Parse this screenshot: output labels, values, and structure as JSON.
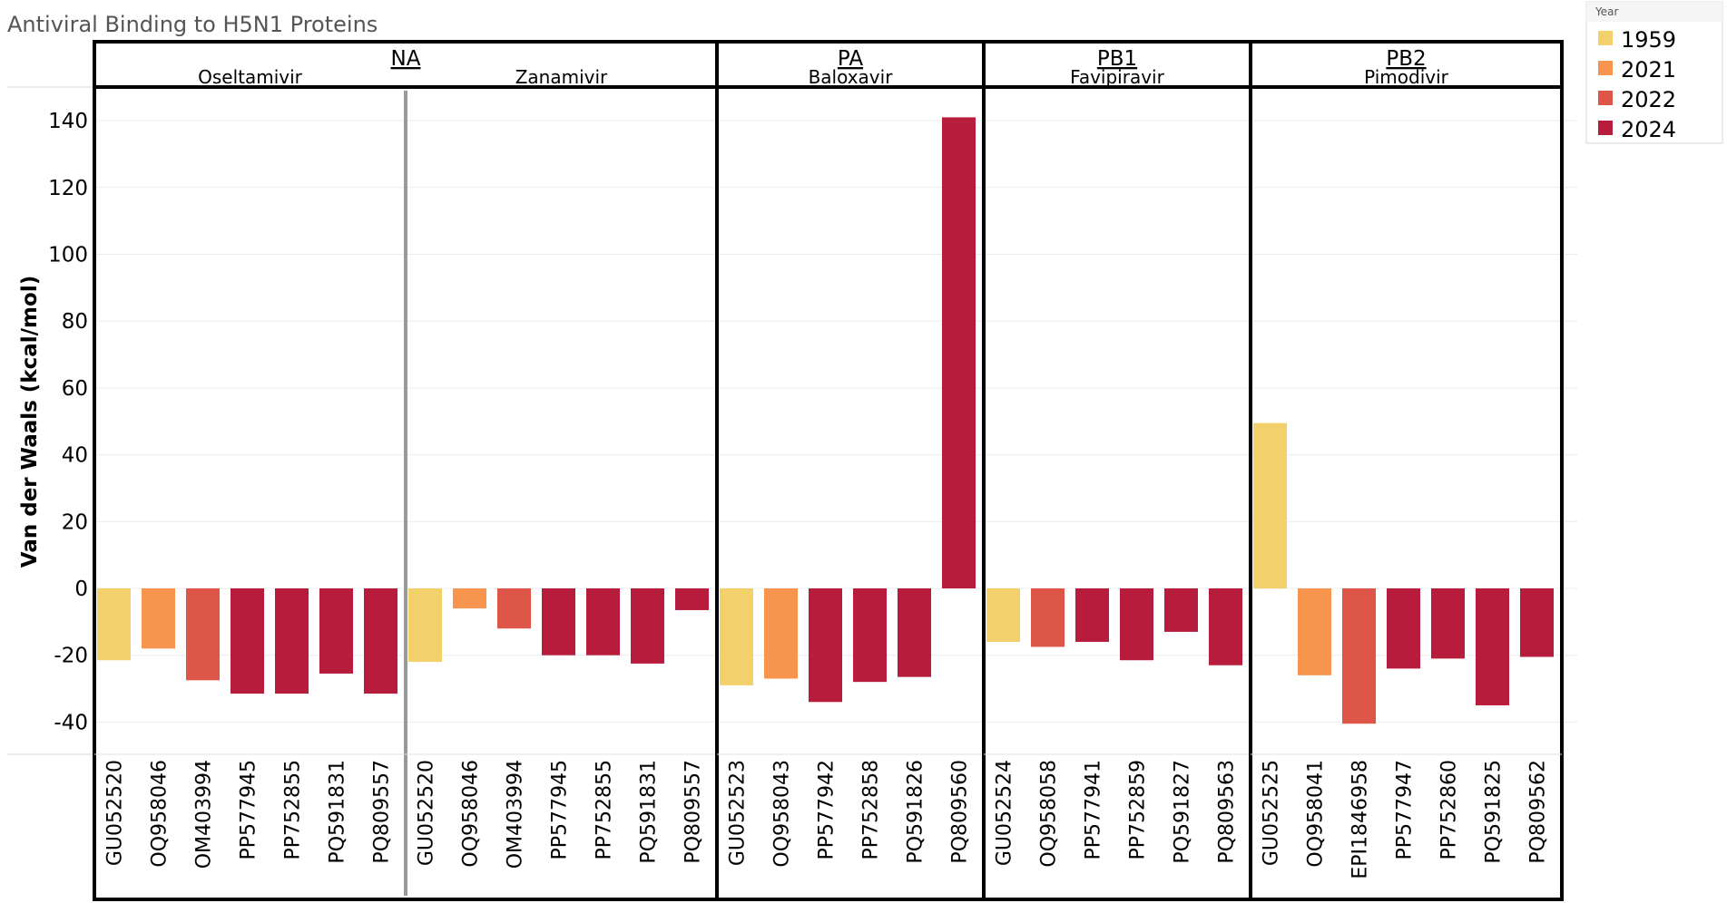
{
  "chart_data": {
    "type": "bar",
    "title": "Antiviral Binding to H5N1 Proteins",
    "ylabel": "Van der Waals (kcal/mol)",
    "ylim": [
      -49,
      150
    ],
    "yticks": [
      140,
      120,
      100,
      80,
      60,
      40,
      20,
      0,
      -20,
      -40
    ],
    "grid": true,
    "legend_placement": "top-right",
    "legend": {
      "title": "Year",
      "items": [
        {
          "label": "1959",
          "color": "#F2D06B"
        },
        {
          "label": "2021",
          "color": "#F7954E"
        },
        {
          "label": "2022",
          "color": "#DE5647"
        },
        {
          "label": "2024",
          "color": "#B81C3C"
        }
      ]
    },
    "panels": [
      {
        "protein": "NA",
        "groups": [
          {
            "drug": "Oseltamivir",
            "bars": [
              {
                "id": "GU052520",
                "year": "1959",
                "value": -21.5
              },
              {
                "id": "OQ958046",
                "year": "2021",
                "value": -18
              },
              {
                "id": "OM403994",
                "year": "2022",
                "value": -27.5
              },
              {
                "id": "PP577945",
                "year": "2024",
                "value": -31.5
              },
              {
                "id": "PP752855",
                "year": "2024",
                "value": -31.5
              },
              {
                "id": "PQ591831",
                "year": "2024",
                "value": -25.5
              },
              {
                "id": "PQ809557",
                "year": "2024",
                "value": -31.5
              }
            ]
          },
          {
            "drug": "Zanamivir",
            "bars": [
              {
                "id": "GU052520",
                "year": "1959",
                "value": -22
              },
              {
                "id": "OQ958046",
                "year": "2021",
                "value": -6
              },
              {
                "id": "OM403994",
                "year": "2022",
                "value": -12
              },
              {
                "id": "PP577945",
                "year": "2024",
                "value": -20
              },
              {
                "id": "PP752855",
                "year": "2024",
                "value": -20
              },
              {
                "id": "PQ591831",
                "year": "2024",
                "value": -22.5
              },
              {
                "id": "PQ809557",
                "year": "2024",
                "value": -6.5
              }
            ]
          }
        ]
      },
      {
        "protein": "PA",
        "groups": [
          {
            "drug": "Baloxavir",
            "bars": [
              {
                "id": "GU052523",
                "year": "1959",
                "value": -29
              },
              {
                "id": "OQ958043",
                "year": "2021",
                "value": -27
              },
              {
                "id": "PP577942",
                "year": "2024",
                "value": -34
              },
              {
                "id": "PP752858",
                "year": "2024",
                "value": -28
              },
              {
                "id": "PQ591826",
                "year": "2024",
                "value": -26.5
              },
              {
                "id": "PQ809560",
                "year": "2024",
                "value": 141
              }
            ]
          }
        ]
      },
      {
        "protein": "PB1",
        "groups": [
          {
            "drug": "Favipiravir",
            "bars": [
              {
                "id": "GU052524",
                "year": "1959",
                "value": -16
              },
              {
                "id": "OQ958058",
                "year": "2022",
                "value": -17.5
              },
              {
                "id": "PP577941",
                "year": "2024",
                "value": -16
              },
              {
                "id": "PP752859",
                "year": "2024",
                "value": -21.5
              },
              {
                "id": "PQ591827",
                "year": "2024",
                "value": -13
              },
              {
                "id": "PQ809563",
                "year": "2024",
                "value": -23
              }
            ]
          }
        ]
      },
      {
        "protein": "PB2",
        "groups": [
          {
            "drug": "Pimodivir",
            "bars": [
              {
                "id": "GU052525",
                "year": "1959",
                "value": 49.5
              },
              {
                "id": "OQ958041",
                "year": "2021",
                "value": -26
              },
              {
                "id": "EPI1846958",
                "year": "2022",
                "value": -40.5
              },
              {
                "id": "PP577947",
                "year": "2024",
                "value": -24
              },
              {
                "id": "PP752860",
                "year": "2024",
                "value": -21
              },
              {
                "id": "PQ591825",
                "year": "2024",
                "value": -35
              },
              {
                "id": "PQ809562",
                "year": "2024",
                "value": -20.5
              }
            ]
          }
        ]
      }
    ]
  }
}
